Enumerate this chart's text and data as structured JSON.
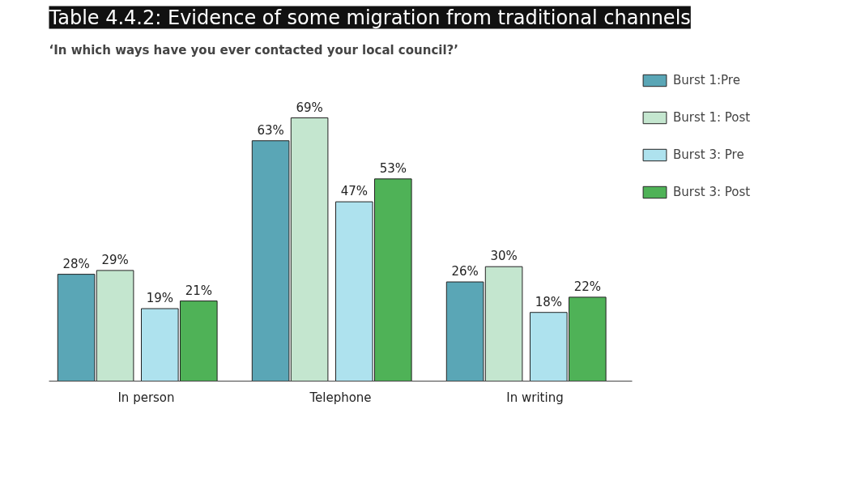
{
  "chart_data": {
    "type": "bar",
    "title": "Table 4.4.2: Evidence of some migration from traditional channels",
    "subtitle": "‘In which ways have you ever contacted your local council?’",
    "categories": [
      "In person",
      "Telephone",
      "In writing"
    ],
    "legend": "right",
    "grid": false,
    "series": [
      {
        "name": "Burst 1:Pre",
        "color": "#5aa6b6",
        "values": [
          28,
          63,
          26
        ],
        "value_labels": [
          "28%",
          "63%",
          "26%"
        ]
      },
      {
        "name": "Burst 1: Post",
        "color": "#c4e6cf",
        "values": [
          29,
          69,
          30
        ],
        "value_labels": [
          "29%",
          "69%",
          "30%"
        ]
      },
      {
        "name": "Burst 3: Pre",
        "color": "#aee2ee",
        "values": [
          19,
          47,
          18
        ],
        "value_labels": [
          "19%",
          "47%",
          "18%"
        ]
      },
      {
        "name": "Burst 3: Post",
        "color": "#4fb257",
        "values": [
          21,
          53,
          22
        ],
        "value_labels": [
          "21%",
          "53%",
          "22%"
        ]
      }
    ]
  }
}
